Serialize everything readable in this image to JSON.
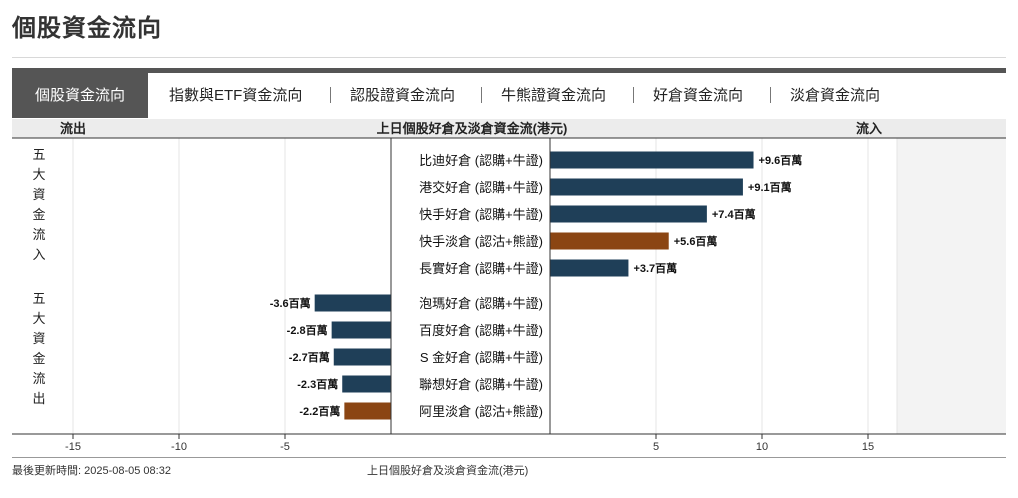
{
  "page": {
    "title": "個股資金流向"
  },
  "tabs": [
    {
      "label": "個股資金流向",
      "active": true
    },
    {
      "label": "指數與ETF資金流向",
      "active": false
    },
    {
      "label": "認股證資金流向",
      "active": false
    },
    {
      "label": "牛熊證資金流向",
      "active": false
    },
    {
      "label": "好倉資金流向",
      "active": false
    },
    {
      "label": "淡倉資金流向",
      "active": false
    }
  ],
  "colors": {
    "long": "#1f3f58",
    "short": "#8b4513",
    "header_bg": "#ececec",
    "tab_active": "#555555"
  },
  "chart_data": {
    "type": "bar",
    "orientation": "horizontal",
    "title": "上日個股好倉及淡倉資金流(港元)",
    "left_header": "流出",
    "right_header": "流入",
    "xlim": [
      -15,
      15
    ],
    "xticks": [
      -15,
      -10,
      -5,
      5,
      10,
      15
    ],
    "groups": [
      {
        "label": "五大資金流入",
        "label_chars": [
          "五",
          "大",
          "資",
          "金",
          "流",
          "入"
        ]
      },
      {
        "label": "五大資金流出",
        "label_chars": [
          "五",
          "大",
          "資",
          "金",
          "流",
          "出"
        ]
      }
    ],
    "bars": [
      {
        "name": "比迪好倉",
        "type": "認購+牛證",
        "value": 9.6,
        "display": "+9.6百萬",
        "side": "long",
        "group": 0
      },
      {
        "name": "港交好倉",
        "type": "認購+牛證",
        "value": 9.1,
        "display": "+9.1百萬",
        "side": "long",
        "group": 0
      },
      {
        "name": "快手好倉",
        "type": "認購+牛證",
        "value": 7.4,
        "display": "+7.4百萬",
        "side": "long",
        "group": 0
      },
      {
        "name": "快手淡倉",
        "type": "認沽+熊證",
        "value": 5.6,
        "display": "+5.6百萬",
        "side": "short",
        "group": 0
      },
      {
        "name": "長實好倉",
        "type": "認購+牛證",
        "value": 3.7,
        "display": "+3.7百萬",
        "side": "long",
        "group": 0
      },
      {
        "name": "泡瑪好倉",
        "type": "認購+牛證",
        "value": -3.6,
        "display": "-3.6百萬",
        "side": "long",
        "group": 1
      },
      {
        "name": "百度好倉",
        "type": "認購+牛證",
        "value": -2.8,
        "display": "-2.8百萬",
        "side": "long",
        "group": 1
      },
      {
        "name": "S 金好倉",
        "type": "認購+牛證",
        "value": -2.7,
        "display": "-2.7百萬",
        "side": "long",
        "group": 1
      },
      {
        "name": "聯想好倉",
        "type": "認購+牛證",
        "value": -2.3,
        "display": "-2.3百萬",
        "side": "long",
        "group": 1
      },
      {
        "name": "阿里淡倉",
        "type": "認沽+熊證",
        "value": -2.2,
        "display": "-2.2百萬",
        "side": "short",
        "group": 1
      }
    ]
  },
  "footer": {
    "updated": "最後更新時間: 2025-08-05 08:32",
    "caption": "上日個股好倉及淡倉資金流(港元)"
  }
}
